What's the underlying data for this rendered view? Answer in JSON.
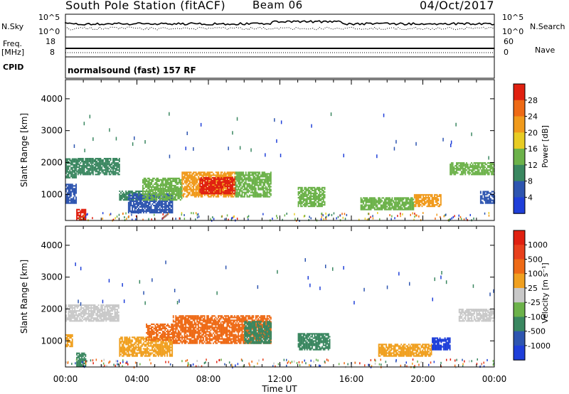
{
  "header": {
    "title": "South Pole Station (fitACF)",
    "beam": "Beam 06",
    "date": "04/Oct/2017"
  },
  "side_labels": {
    "nsky": "N.Sky",
    "freq": "Freq.",
    "mhz": "[MHz]",
    "cpid": "CPID",
    "nsearch": "N.Search",
    "nave": "Nave",
    "noise_ticks_left": [
      "10^5",
      "10^0"
    ],
    "noise_ticks_right": [
      "10^5",
      "10^0"
    ],
    "freq_ticks_left": [
      "18",
      "8"
    ],
    "freq_ticks_right": [
      "60",
      "0"
    ]
  },
  "cpid_text": "normalsound (fast) 157 RF",
  "chart_data": [
    {
      "type": "heatmap",
      "name": "power-panel",
      "ylabel": "Slant Range [km]",
      "xlabel": "",
      "yticks": [
        "1000",
        "2000",
        "3000",
        "4000"
      ],
      "ylim": [
        180,
        4600
      ],
      "xlim": [
        0,
        24
      ],
      "colorbar": {
        "label": "Power [dB]",
        "ticks": [
          "4",
          "8",
          "12",
          "16",
          "20",
          "24",
          "28"
        ],
        "colors": [
          "#1f3fd9",
          "#2e55b0",
          "#3a8760",
          "#6cb24a",
          "#e8cc24",
          "#f09a1c",
          "#ee6a16",
          "#e02010"
        ]
      },
      "blobs": [
        {
          "t0": 0.0,
          "t1": 0.6,
          "r0": 700,
          "r1": 1300,
          "c": "#2e55b0"
        },
        {
          "t0": 0.0,
          "t1": 0.6,
          "r0": 1500,
          "r1": 2100,
          "c": "#3a8760"
        },
        {
          "t0": 0.6,
          "t1": 3.0,
          "r0": 1600,
          "r1": 2100,
          "c": "#3a8760"
        },
        {
          "t0": 0.6,
          "t1": 1.1,
          "r0": 180,
          "r1": 500,
          "c": "#e02010"
        },
        {
          "t0": 3.0,
          "t1": 4.3,
          "r0": 800,
          "r1": 1100,
          "c": "#3a8760"
        },
        {
          "t0": 3.5,
          "t1": 6.0,
          "r0": 400,
          "r1": 1000,
          "c": "#2e55b0"
        },
        {
          "t0": 4.3,
          "t1": 6.5,
          "r0": 800,
          "r1": 1500,
          "c": "#6cb24a"
        },
        {
          "t0": 6.5,
          "t1": 9.5,
          "r0": 900,
          "r1": 1700,
          "c": "#f09a1c"
        },
        {
          "t0": 7.5,
          "t1": 9.5,
          "r0": 1000,
          "r1": 1500,
          "c": "#e02010"
        },
        {
          "t0": 9.5,
          "t1": 11.5,
          "r0": 900,
          "r1": 1700,
          "c": "#6cb24a"
        },
        {
          "t0": 13.0,
          "t1": 14.5,
          "r0": 600,
          "r1": 1200,
          "c": "#6cb24a"
        },
        {
          "t0": 16.5,
          "t1": 19.5,
          "r0": 500,
          "r1": 900,
          "c": "#6cb24a"
        },
        {
          "t0": 19.5,
          "t1": 21.0,
          "r0": 600,
          "r1": 1000,
          "c": "#f09a1c"
        },
        {
          "t0": 21.5,
          "t1": 24.0,
          "r0": 1600,
          "r1": 2000,
          "c": "#6cb24a"
        },
        {
          "t0": 23.2,
          "t1": 24.0,
          "r0": 700,
          "r1": 1100,
          "c": "#2e55b0"
        }
      ]
    },
    {
      "type": "heatmap",
      "name": "velocity-panel",
      "ylabel": "Slant Range [km]",
      "xlabel": "Time UT",
      "yticks": [
        "1000",
        "2000",
        "3000",
        "4000"
      ],
      "ylim": [
        180,
        4600
      ],
      "xlim": [
        0,
        24
      ],
      "xticks": [
        "00:00",
        "04:00",
        "08:00",
        "12:00",
        "16:00",
        "20:00",
        "00:00"
      ],
      "colorbar": {
        "label": "Velocity [m s⁻¹]",
        "ticks": [
          "1000",
          "500",
          "100",
          "25",
          "-25",
          "-100",
          "-500",
          "-1000"
        ],
        "colors": [
          "#1f3fd9",
          "#2e55b0",
          "#3a8760",
          "#6cb24a",
          "#c8c8c8",
          "#f0a020",
          "#ee6a16",
          "#e8401c",
          "#e02010"
        ]
      },
      "blobs": [
        {
          "t0": 0.0,
          "t1": 0.4,
          "r0": 800,
          "r1": 1200,
          "c": "#f0a020"
        },
        {
          "t0": 0.0,
          "t1": 3.0,
          "r0": 1600,
          "r1": 2100,
          "c": "#c8c8c8"
        },
        {
          "t0": 0.6,
          "t1": 1.1,
          "r0": 180,
          "r1": 600,
          "c": "#3a8760"
        },
        {
          "t0": 3.0,
          "t1": 6.0,
          "r0": 500,
          "r1": 1100,
          "c": "#f0a020"
        },
        {
          "t0": 4.5,
          "t1": 6.0,
          "r0": 1000,
          "r1": 1500,
          "c": "#ee6a16"
        },
        {
          "t0": 6.0,
          "t1": 11.5,
          "r0": 900,
          "r1": 1800,
          "c": "#ee6a16"
        },
        {
          "t0": 10.0,
          "t1": 11.5,
          "r0": 900,
          "r1": 1600,
          "c": "#3a8760"
        },
        {
          "t0": 13.0,
          "t1": 14.8,
          "r0": 700,
          "r1": 1200,
          "c": "#3a8760"
        },
        {
          "t0": 17.5,
          "t1": 20.5,
          "r0": 500,
          "r1": 900,
          "c": "#f0a020"
        },
        {
          "t0": 20.5,
          "t1": 21.5,
          "r0": 700,
          "r1": 1100,
          "c": "#1f3fd9"
        },
        {
          "t0": 22.0,
          "t1": 24.0,
          "r0": 1600,
          "r1": 2000,
          "c": "#c8c8c8"
        }
      ]
    }
  ]
}
